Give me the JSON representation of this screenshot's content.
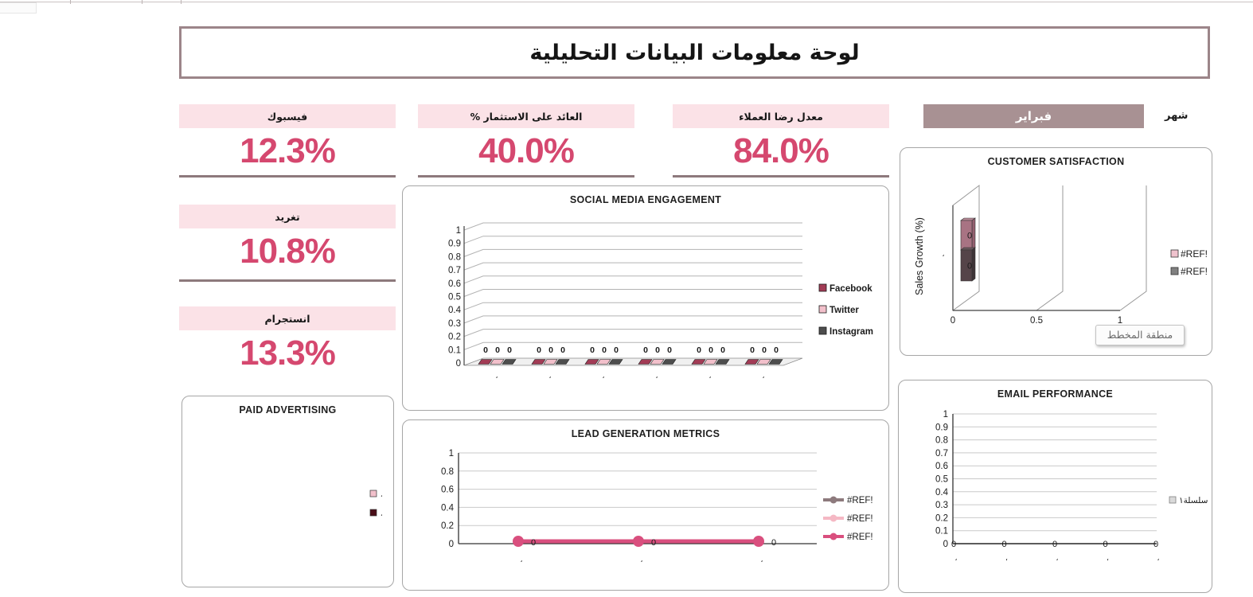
{
  "header": {
    "title": "لوحة معلومات البيانات التحليلية"
  },
  "month": {
    "label": "شهر",
    "value": "فبراير"
  },
  "kpis": [
    {
      "label": "فيسبوك",
      "value": "12.3%"
    },
    {
      "label": "العائد على الاستثمار %",
      "value": "40.0%"
    },
    {
      "label": "معدل رضا العملاء",
      "value": "84.0%"
    },
    {
      "label": "تغريد",
      "value": "10.8%"
    },
    {
      "label": "انستجرام",
      "value": "13.3%"
    }
  ],
  "tooltip": {
    "text": "منطقة المخطط"
  },
  "colors": {
    "kpi_value": "#d5486f",
    "kpi_header_bg": "#fbe2e7",
    "kpi_underline": "#8d797c",
    "title_border": "#9c8589",
    "month_box_bg": "#a89193"
  },
  "chart_data": [
    {
      "id": "customer-satisfaction",
      "type": "bar",
      "title": "CUSTOMER SATISFACTION",
      "ylabel": "Sales Growth (%)",
      "categories": [
        "،"
      ],
      "xticks": [
        0,
        0.5,
        1
      ],
      "xlim": [
        0,
        1
      ],
      "legend_position": "right",
      "series": [
        {
          "name": "#REF!",
          "values": [
            0
          ],
          "bar_color": "#a87383",
          "legend_color": "#efc2cd"
        },
        {
          "name": "#REF!",
          "values": [
            0
          ],
          "bar_color": "#554449",
          "legend_color": "#808080"
        }
      ]
    },
    {
      "id": "social-media-engagement",
      "type": "bar",
      "title": "SOCIAL MEDIA ENGAGEMENT",
      "categories": [
        "،",
        "،",
        "،",
        "،",
        "،",
        "،"
      ],
      "yticks": [
        1,
        0.9,
        0.8,
        0.7,
        0.6,
        0.5,
        0.4,
        0.3,
        0.2,
        0.1,
        0
      ],
      "ylim": [
        0,
        1
      ],
      "legend_position": "right",
      "series": [
        {
          "name": "Facebook",
          "color": "#a23b55",
          "values": [
            0,
            0,
            0,
            0,
            0,
            0
          ]
        },
        {
          "name": "Twitter",
          "color": "#f2c0cb",
          "values": [
            0,
            0,
            0,
            0,
            0,
            0
          ]
        },
        {
          "name": "Instagram",
          "color": "#4d4d4d",
          "values": [
            0,
            0,
            0,
            0,
            0,
            0
          ]
        }
      ]
    },
    {
      "id": "paid-advertising",
      "type": "pie",
      "title": "PAID ADVERTISING",
      "legend_position": "right",
      "series": [
        {
          "name": "،",
          "color": "#f2c0cb"
        },
        {
          "name": "،",
          "color": "#4a0d18"
        }
      ]
    },
    {
      "id": "lead-generation-metrics",
      "type": "line",
      "title": "LEAD GENERATION METRICS",
      "categories": [
        "،",
        "،",
        "،"
      ],
      "yticks": [
        1,
        0.8,
        0.6,
        0.4,
        0.2,
        0
      ],
      "ylim": [
        0,
        1
      ],
      "legend_position": "right",
      "series": [
        {
          "name": "#REF!",
          "color": "#8d7a7d",
          "values": []
        },
        {
          "name": "#REF!",
          "color": "#f5b8c4",
          "values": []
        },
        {
          "name": "#REF!",
          "color": "#d94f7e",
          "values": [
            0,
            0,
            0
          ]
        }
      ]
    },
    {
      "id": "email-performance",
      "type": "line",
      "title": "EMAIL PERFORMANCE",
      "categories": [
        "،",
        "،",
        "،",
        "،",
        "،"
      ],
      "yticks": [
        1,
        0.9,
        0.8,
        0.7,
        0.6,
        0.5,
        0.4,
        0.3,
        0.2,
        0.1,
        0
      ],
      "ylim": [
        0,
        1
      ],
      "legend_position": "right",
      "series": [
        {
          "name": "سلسلة١",
          "color": "#1a1a1a",
          "legend_color": "#d9d9d9",
          "values": [
            0,
            0,
            0,
            0,
            0
          ]
        }
      ]
    }
  ]
}
